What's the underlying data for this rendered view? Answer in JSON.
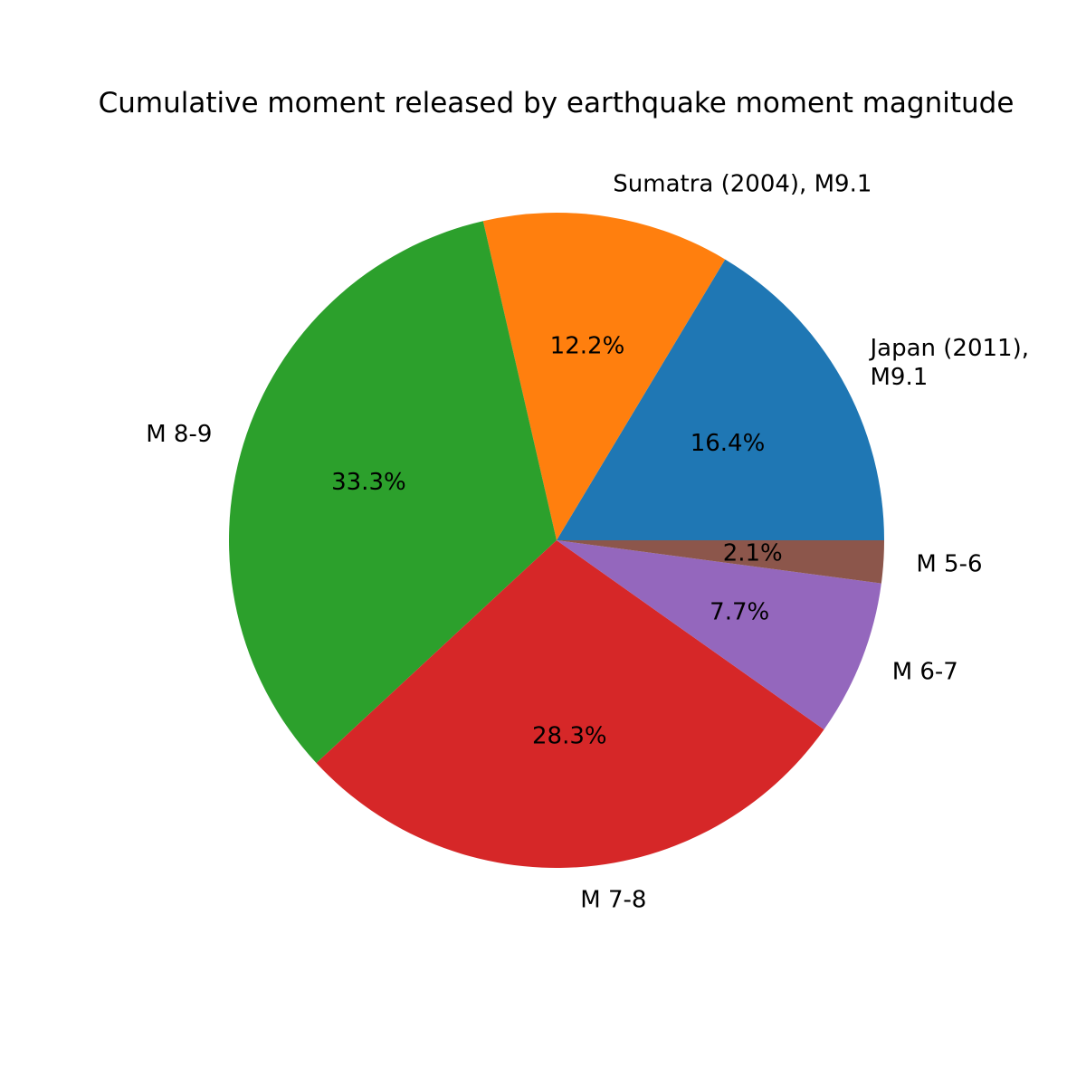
{
  "chart_data": {
    "type": "pie",
    "title": "Cumulative moment released by earthquake moment magnitude",
    "slices": [
      {
        "label": [
          "Japan (2011),",
          "M9.1"
        ],
        "percent_label": "16.4%",
        "value": 16.4,
        "color": "#1f77b4"
      },
      {
        "label": [
          "Sumatra (2004), M9.1"
        ],
        "percent_label": "12.2%",
        "value": 12.2,
        "color": "#ff7f0e"
      },
      {
        "label": [
          "M 8-9"
        ],
        "percent_label": "33.3%",
        "value": 33.3,
        "color": "#2ca02c"
      },
      {
        "label": [
          "M 7-8"
        ],
        "percent_label": "28.3%",
        "value": 28.3,
        "color": "#d62728"
      },
      {
        "label": [
          "M 6-7"
        ],
        "percent_label": "7.7%",
        "value": 7.7,
        "color": "#9467bd"
      },
      {
        "label": [
          "M 5-6"
        ],
        "percent_label": "2.1%",
        "value": 2.1,
        "color": "#8c564b"
      }
    ],
    "start_angle_deg": 0,
    "direction": "counterclockwise",
    "legend": "none"
  }
}
